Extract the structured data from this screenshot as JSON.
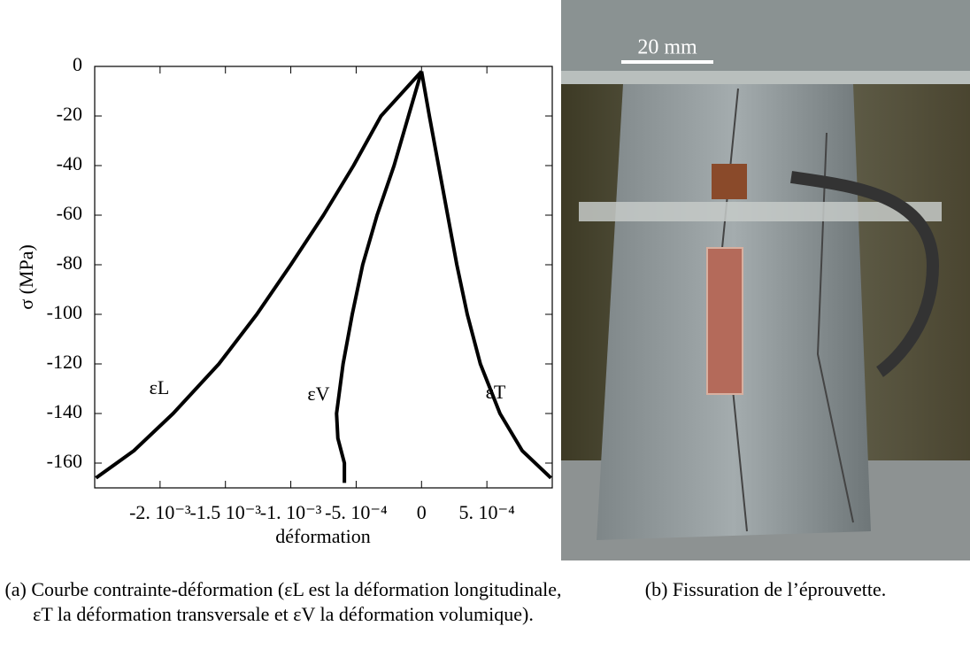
{
  "chart_data": {
    "type": "line",
    "x_label": "déformation",
    "y_label": "σ (MPa)",
    "xlim": [
      -0.0025,
      0.001
    ],
    "ylim": [
      -170,
      0
    ],
    "xticks": [
      {
        "value": -0.002,
        "label": "-2. 10⁻³"
      },
      {
        "value": -0.0015,
        "label": "-1.5 10⁻³"
      },
      {
        "value": -0.001,
        "label": "-1. 10⁻³"
      },
      {
        "value": -0.0005,
        "label": "-5. 10⁻⁴"
      },
      0,
      {
        "value": 0.0005,
        "label": "5. 10⁻⁴"
      }
    ],
    "yticks": [
      0,
      -20,
      -40,
      -60,
      -80,
      -100,
      -120,
      -140,
      -160
    ],
    "series": [
      {
        "name": "εL",
        "color": "#000000",
        "x": [
          0,
          -0.00031,
          -0.00052,
          -0.00075,
          -0.001,
          -0.00126,
          -0.00155,
          -0.0019,
          -0.0022,
          -0.00249
        ],
        "values": [
          -2,
          -20,
          -40,
          -60,
          -80,
          -100,
          -120,
          -140,
          -155,
          -166
        ]
      },
      {
        "name": "εV",
        "color": "#000000",
        "x": [
          0,
          -0.0001,
          -0.00021,
          -0.00034,
          -0.00045,
          -0.00053,
          -0.0006,
          -0.00065,
          -0.00064,
          -0.00059,
          -0.00059
        ],
        "values": [
          -2,
          -20,
          -40,
          -60,
          -80,
          -100,
          -120,
          -140,
          -150,
          -160,
          -168
        ]
      },
      {
        "name": "εT",
        "color": "#000000",
        "x": [
          0,
          6e-05,
          0.00013,
          0.0002,
          0.00027,
          0.00035,
          0.00045,
          0.0006,
          0.00077,
          0.00099
        ],
        "values": [
          -2,
          -20,
          -40,
          -60,
          -80,
          -100,
          -120,
          -140,
          -155,
          -166
        ]
      }
    ]
  },
  "photo": {
    "scale_label": "20 mm"
  },
  "captions": {
    "a": "(a) Courbe contrainte-déformation (εL est la déformation longitudinale, εT la déformation transversale et εV la déformation volumique).",
    "b": "(b) Fissuration de l’éprouvette."
  }
}
